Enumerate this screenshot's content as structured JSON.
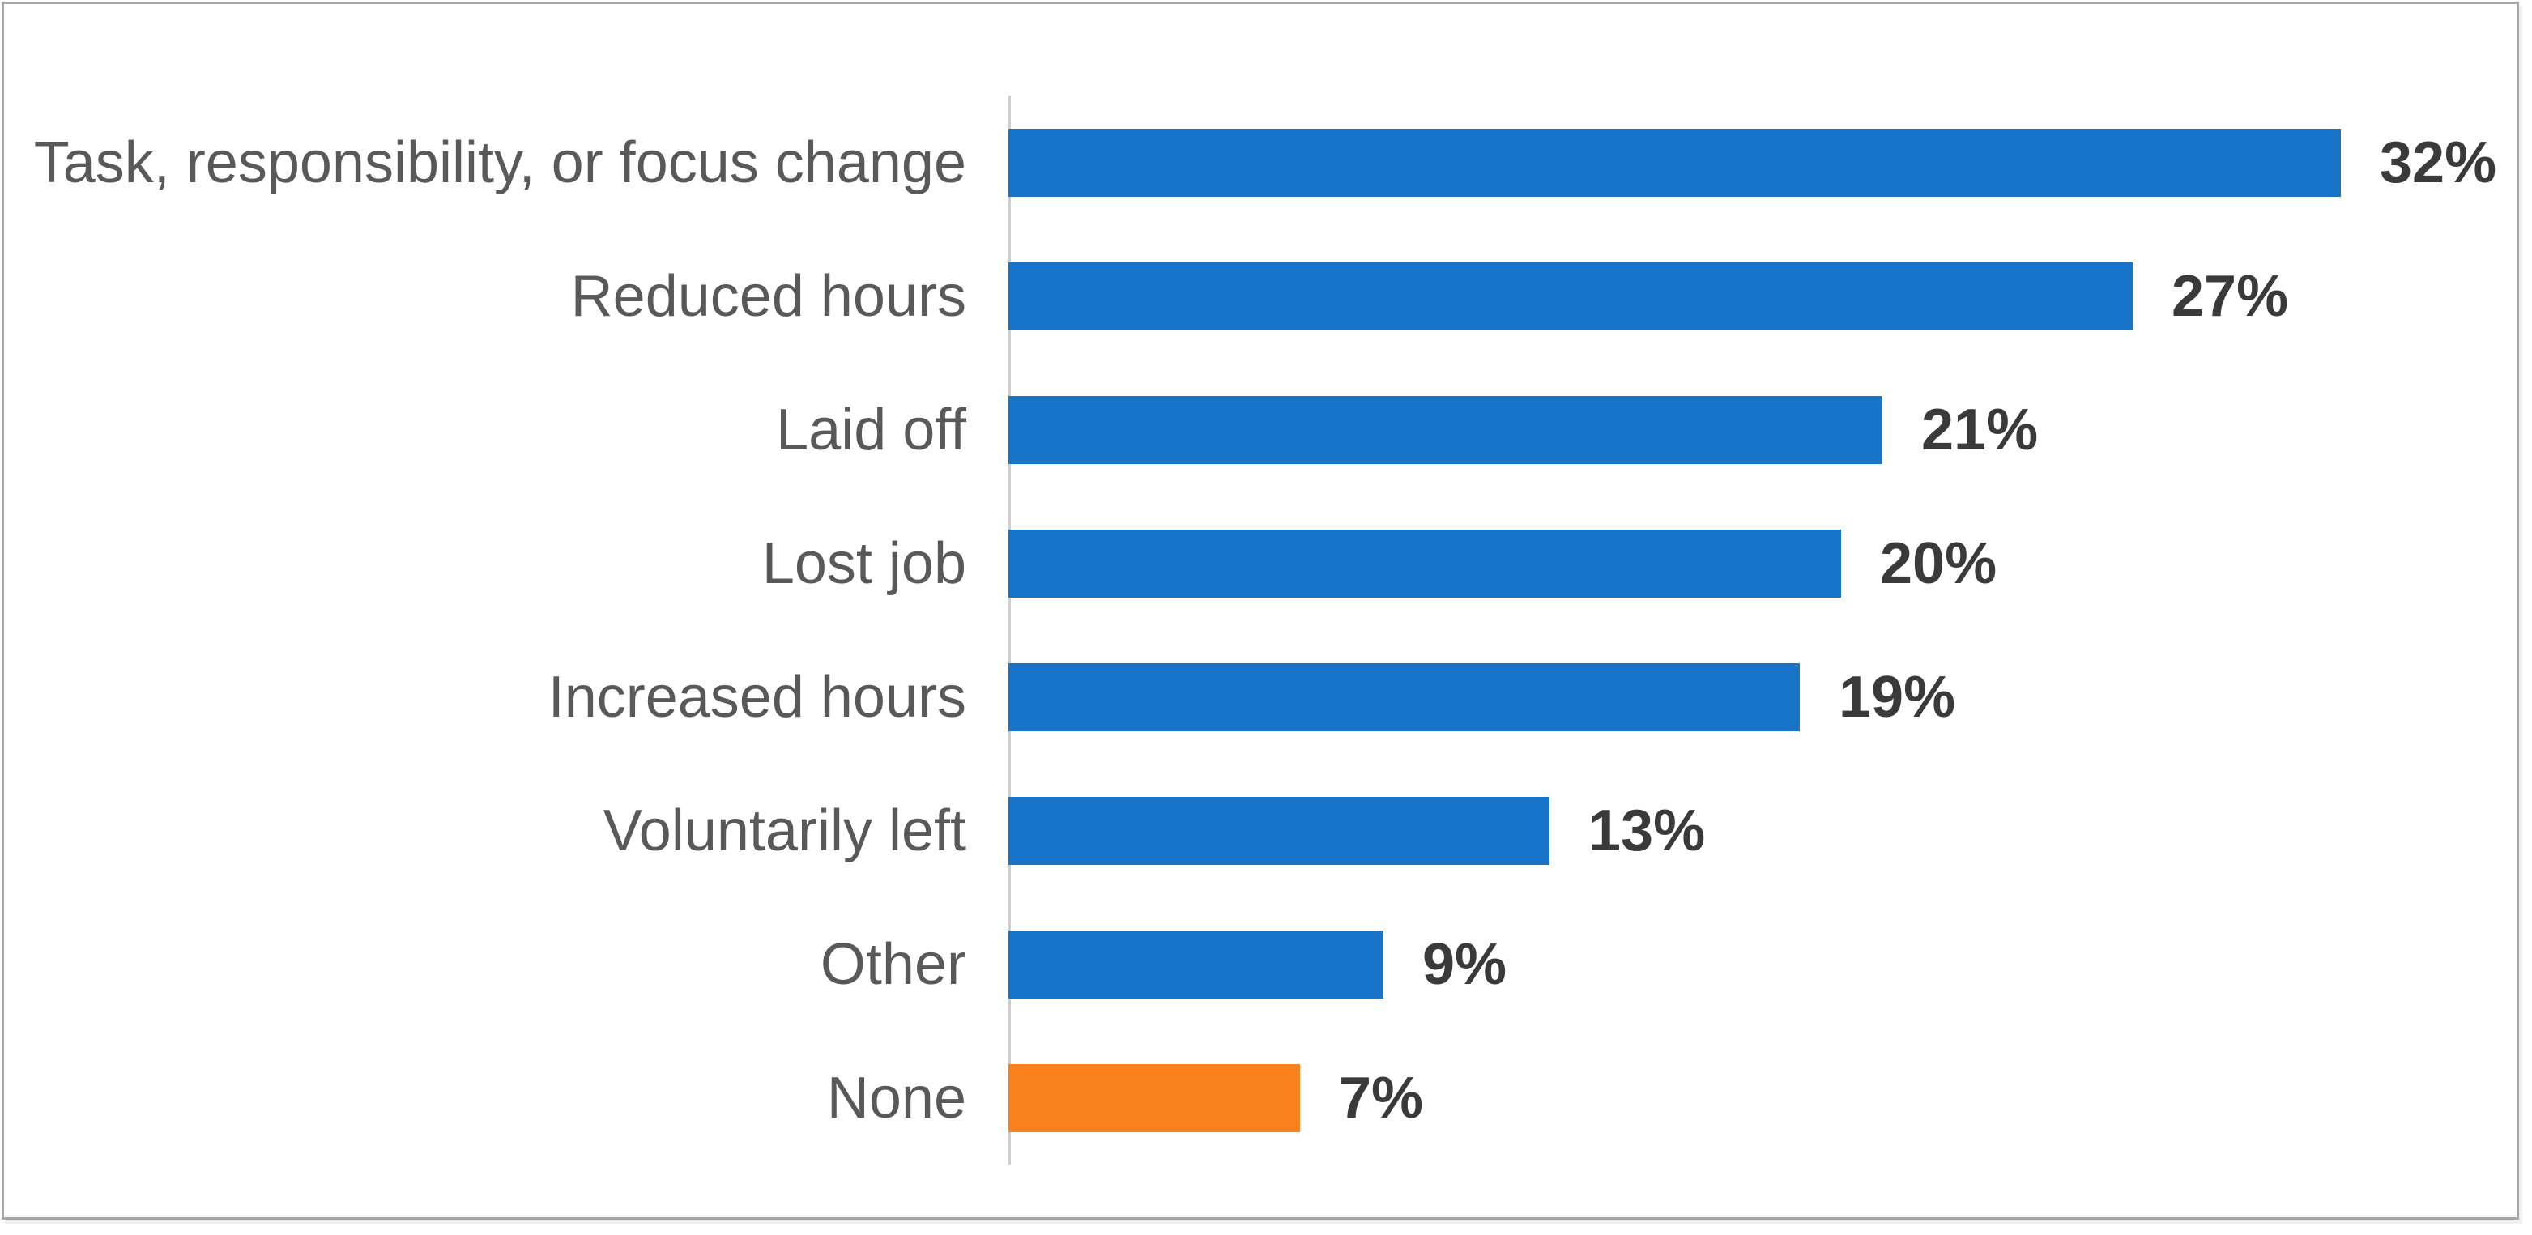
{
  "chart_data": {
    "type": "bar",
    "orientation": "horizontal",
    "title": "",
    "xlabel": "",
    "ylabel": "",
    "categories": [
      "Task, responsibility, or focus change",
      "Reduced hours",
      "Laid off",
      "Lost job",
      "Increased hours",
      "Voluntarily left",
      "Other",
      "None"
    ],
    "values": [
      32,
      27,
      21,
      20,
      19,
      13,
      9,
      7
    ],
    "value_labels": [
      "32%",
      "27%",
      "21%",
      "20%",
      "19%",
      "13%",
      "9%",
      "7%"
    ],
    "bar_colors": [
      "#1874c8",
      "#1874c8",
      "#1874c8",
      "#1874c8",
      "#1874c8",
      "#1874c8",
      "#1874c8",
      "#f8811e"
    ],
    "xlim": [
      0,
      36
    ],
    "grid": false,
    "legend": false,
    "data_labels": true,
    "colors": {
      "bar_blue": "#1874c8",
      "bar_orange": "#f8811e",
      "category_label": "#595959",
      "value_label": "#3a3a3a",
      "axis_line": "#cfcfcf",
      "frame_border": "#a6a6a6",
      "background": "#ffffff"
    }
  }
}
